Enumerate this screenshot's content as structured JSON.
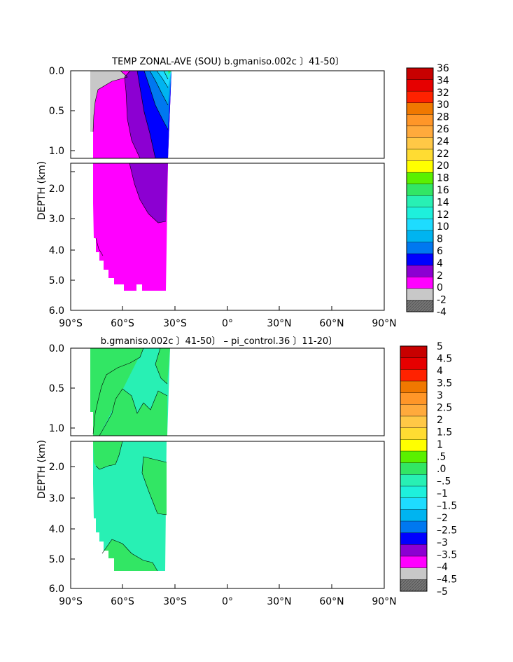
{
  "chart_data": [
    {
      "type": "contour",
      "title": "TEMP ZONAL-AVE (SOU) b.gmaniso.002c 〕41-50〕",
      "ylabel": "DEPTH (km)",
      "x_ticks": [
        "90°S",
        "60°S",
        "30°S",
        "0°",
        "30°N",
        "60°N",
        "90°N"
      ],
      "y_ticks_upper": [
        "0.0",
        "0.5",
        "1.0"
      ],
      "y_ticks_lower": [
        "2.0",
        "3.0",
        "4.0",
        "5.0",
        "6.0"
      ],
      "xlim": [
        -90,
        90
      ],
      "ylim_km": [
        0,
        6
      ],
      "data_extent_lat": [
        -77,
        -35
      ],
      "colorbar": {
        "labels": [
          "36",
          "34",
          "32",
          "30",
          "28",
          "26",
          "24",
          "22",
          "20",
          "18",
          "16",
          "14",
          "12",
          "10",
          "8",
          "6",
          "4",
          "2",
          "0",
          "-2",
          "-4"
        ],
        "colors": [
          "#c80000",
          "#e60000",
          "#ff2200",
          "#f07800",
          "#ff9628",
          "#ffaa3c",
          "#ffc846",
          "#ffdc32",
          "#ffff00",
          "#5af000",
          "#32e664",
          "#28f0b4",
          "#1ef0dc",
          "#1edcff",
          "#00b4f0",
          "#0078f0",
          "#0000ff",
          "#8c00d2",
          "#ff00ff",
          "#c8c8c8",
          "#787878"
        ]
      }
    },
    {
      "type": "contour",
      "title": "b.gmaniso.002c 〕41-50〕 – pi_control.36 〕11-20〕",
      "ylabel": "DEPTH (km)",
      "x_ticks": [
        "90°S",
        "60°S",
        "30°S",
        "0°",
        "30°N",
        "60°N",
        "90°N"
      ],
      "y_ticks_upper": [
        "0.0",
        "0.5",
        "1.0"
      ],
      "y_ticks_lower": [
        "2.0",
        "3.0",
        "4.0",
        "5.0",
        "6.0"
      ],
      "xlim": [
        -90,
        90
      ],
      "ylim_km": [
        0,
        6
      ],
      "data_extent_lat": [
        -77,
        -35
      ],
      "colorbar": {
        "labels": [
          "5",
          "4.5",
          "4",
          "3.5",
          "3",
          "2.5",
          "2",
          "1.5",
          "1",
          ".5",
          ".0",
          "–.5",
          "–1",
          "–1.5",
          "–2",
          "–2.5",
          "–3",
          "–3.5",
          "–4",
          "–4.5",
          "–5"
        ],
        "colors": [
          "#c80000",
          "#e60000",
          "#ff2200",
          "#f07800",
          "#ff9628",
          "#ffaa3c",
          "#ffc846",
          "#ffdc32",
          "#ffff00",
          "#5af000",
          "#32e664",
          "#28f0b4",
          "#1ef0dc",
          "#1edcff",
          "#00b4f0",
          "#0078f0",
          "#0000ff",
          "#8c00d2",
          "#ff00ff",
          "#c8c8c8",
          "#787878"
        ]
      }
    }
  ]
}
